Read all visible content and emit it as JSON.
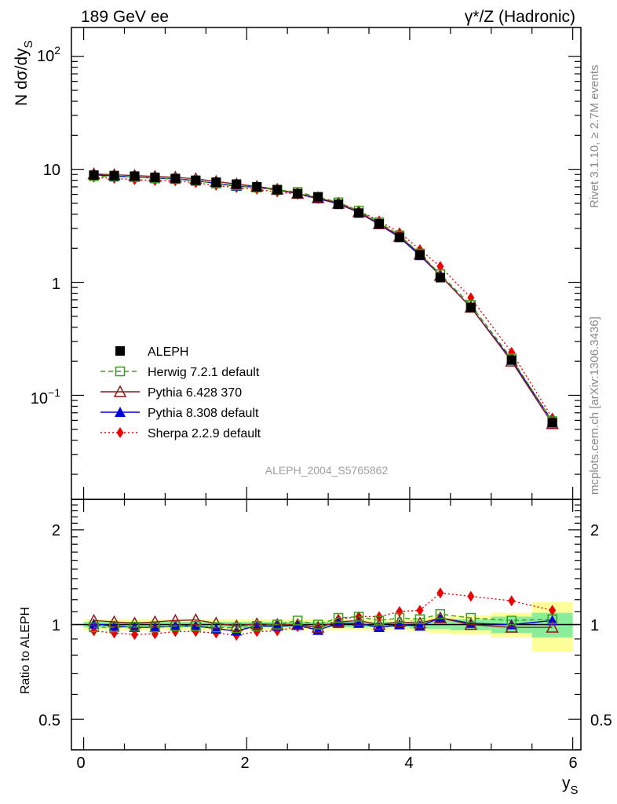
{
  "header": {
    "left": "189 GeV ee",
    "right": "γ*/Z (Hadronic)"
  },
  "side_text": {
    "rivet": "Rivet 3.1.10, ≥ 2.7M events",
    "source": "mcplots.cern.ch [arXiv:1306.3436]"
  },
  "watermark": "ALEPH_2004_S5765862",
  "colors": {
    "data": "#000000",
    "herwig": "#3a9a1a",
    "pythia6": "#8b1a1a",
    "pythia8": "#0000dd",
    "sherpa": "#ee0000",
    "band_inner": "#88ee99",
    "band_outer": "#ffff99"
  },
  "chart_data": [
    {
      "type": "scatter",
      "panel": "main",
      "ylabel": "N dσ/dy",
      "ylabel_sub": "S",
      "yscale": "log",
      "xlim": [
        -0.15,
        6.1
      ],
      "ylim": [
        0.012,
        180
      ],
      "y_tick_labels": {
        "major": [
          "10^-1",
          "1",
          "10",
          "10^2"
        ]
      },
      "legend_position": "middle-left",
      "x": [
        0.125,
        0.375,
        0.625,
        0.875,
        1.125,
        1.375,
        1.625,
        1.875,
        2.125,
        2.375,
        2.625,
        2.875,
        3.125,
        3.375,
        3.625,
        3.875,
        4.125,
        4.375,
        4.75,
        5.25,
        5.75
      ],
      "series": [
        {
          "name": "ALEPH",
          "key": "data",
          "marker": "filled-square",
          "values": [
            8.9,
            8.8,
            8.7,
            8.5,
            8.3,
            8.0,
            7.7,
            7.4,
            7.0,
            6.6,
            6.1,
            5.7,
            4.9,
            4.1,
            3.3,
            2.5,
            1.75,
            1.1,
            0.6,
            0.205,
            0.057
          ]
        },
        {
          "name": "Herwig 7.2.1 default",
          "key": "herwig",
          "marker": "open-square",
          "line": "dashed",
          "values": [
            8.7,
            8.6,
            8.55,
            8.3,
            8.2,
            7.9,
            7.5,
            7.2,
            6.9,
            6.6,
            6.3,
            5.7,
            5.1,
            4.3,
            3.4,
            2.6,
            1.8,
            1.18,
            0.63,
            0.212,
            0.059
          ]
        },
        {
          "name": "Pythia 6.428 370",
          "key": "pythia6",
          "marker": "open-triangle",
          "line": "solid",
          "values": [
            9.1,
            8.95,
            8.8,
            8.65,
            8.5,
            8.25,
            7.8,
            7.4,
            7.05,
            6.65,
            6.1,
            5.6,
            5.0,
            4.2,
            3.3,
            2.55,
            1.78,
            1.15,
            0.6,
            0.2,
            0.056
          ]
        },
        {
          "name": "Pythia 8.308 default",
          "key": "pythia8",
          "marker": "filled-triangle",
          "line": "solid",
          "values": [
            8.95,
            8.7,
            8.55,
            8.35,
            8.25,
            7.95,
            7.5,
            7.1,
            6.95,
            6.55,
            6.1,
            5.5,
            4.95,
            4.15,
            3.25,
            2.5,
            1.73,
            1.15,
            0.6,
            0.205,
            0.059
          ]
        },
        {
          "name": "Sherpa 2.2.9 default",
          "key": "sherpa",
          "marker": "filled-diamond",
          "line": "dotted",
          "values": [
            8.5,
            8.3,
            8.1,
            7.95,
            7.9,
            7.6,
            7.2,
            6.9,
            6.65,
            6.3,
            6.0,
            5.5,
            5.1,
            4.3,
            3.5,
            2.75,
            1.95,
            1.38,
            0.73,
            0.24,
            0.063
          ]
        }
      ]
    },
    {
      "type": "scatter",
      "panel": "ratio",
      "ylabel": "Ratio to ALEPH",
      "xlabel": "y",
      "xlabel_sub": "S",
      "yscale": "log",
      "xlim": [
        -0.15,
        6.1
      ],
      "ylim": [
        0.4,
        2.5
      ],
      "x_ticks": [
        0,
        2,
        4,
        6
      ],
      "y_ticks": [
        0.5,
        1,
        2
      ],
      "bin_edges": [
        0,
        0.25,
        0.5,
        0.75,
        1.0,
        1.25,
        1.5,
        1.75,
        2.0,
        2.25,
        2.5,
        2.75,
        3.0,
        3.25,
        3.5,
        3.75,
        4.0,
        4.25,
        4.5,
        5.0,
        5.5,
        6.0
      ],
      "band_inner_halfwidth": [
        0.02,
        0.02,
        0.02,
        0.02,
        0.02,
        0.02,
        0.02,
        0.02,
        0.02,
        0.02,
        0.02,
        0.02,
        0.02,
        0.02,
        0.02,
        0.02,
        0.03,
        0.03,
        0.04,
        0.06,
        0.09
      ],
      "band_outer_halfwidth": [
        0.04,
        0.04,
        0.04,
        0.04,
        0.04,
        0.04,
        0.04,
        0.04,
        0.04,
        0.04,
        0.04,
        0.04,
        0.04,
        0.04,
        0.04,
        0.04,
        0.05,
        0.06,
        0.07,
        0.09,
        0.18
      ],
      "x": [
        0.125,
        0.375,
        0.625,
        0.875,
        1.125,
        1.375,
        1.625,
        1.875,
        2.125,
        2.375,
        2.625,
        2.875,
        3.125,
        3.375,
        3.625,
        3.875,
        4.125,
        4.375,
        4.75,
        5.25,
        5.75
      ],
      "series": [
        {
          "name": "Herwig 7.2.1 default",
          "key": "herwig",
          "marker": "open-square",
          "line": "dashed",
          "values": [
            0.98,
            0.98,
            0.985,
            0.98,
            0.99,
            0.99,
            0.98,
            0.975,
            0.99,
            1.0,
            1.03,
            1.0,
            1.05,
            1.06,
            1.03,
            1.05,
            1.04,
            1.08,
            1.05,
            1.03,
            1.04
          ]
        },
        {
          "name": "Pythia 6.428 370",
          "key": "pythia6",
          "marker": "open-triangle",
          "line": "solid",
          "values": [
            1.03,
            1.02,
            1.01,
            1.02,
            1.03,
            1.035,
            1.01,
            0.99,
            1.005,
            1.0,
            1.0,
            0.98,
            1.02,
            1.03,
            1.0,
            1.02,
            1.01,
            1.05,
            1.0,
            0.98,
            0.98
          ]
        },
        {
          "name": "Pythia 8.308 default",
          "key": "pythia8",
          "marker": "filled-triangle",
          "line": "solid",
          "values": [
            1.005,
            0.99,
            0.98,
            0.98,
            0.99,
            0.99,
            0.97,
            0.955,
            0.99,
            0.99,
            0.995,
            0.96,
            1.01,
            1.01,
            0.98,
            1.0,
            0.99,
            1.05,
            1.01,
            1.0,
            1.03
          ]
        },
        {
          "name": "Sherpa 2.2.9 default",
          "key": "sherpa",
          "marker": "filled-diamond",
          "line": "dotted",
          "values": [
            0.955,
            0.94,
            0.93,
            0.935,
            0.95,
            0.95,
            0.94,
            0.925,
            0.95,
            0.955,
            0.985,
            0.97,
            1.04,
            1.06,
            1.06,
            1.1,
            1.11,
            1.26,
            1.23,
            1.19,
            1.11
          ]
        }
      ]
    }
  ],
  "legend": [
    {
      "key": "data",
      "label": "ALEPH"
    },
    {
      "key": "herwig",
      "label": "Herwig 7.2.1 default"
    },
    {
      "key": "pythia6",
      "label": "Pythia 6.428 370"
    },
    {
      "key": "pythia8",
      "label": "Pythia 8.308 default"
    },
    {
      "key": "sherpa",
      "label": "Sherpa 2.2.9 default"
    }
  ],
  "labels": {
    "main_y_ticks": {
      "t100": "10",
      "t100exp": "2",
      "t10": "10",
      "t1": "1",
      "t01": "10",
      "t01exp": "−1"
    },
    "ratio_y_ticks": {
      "t2": "2",
      "t1": "1",
      "t05": "0.5",
      "t05r": "0.5"
    },
    "x_ticks": {
      "t0": "0",
      "t2": "2",
      "t4": "4",
      "t6": "6"
    }
  }
}
